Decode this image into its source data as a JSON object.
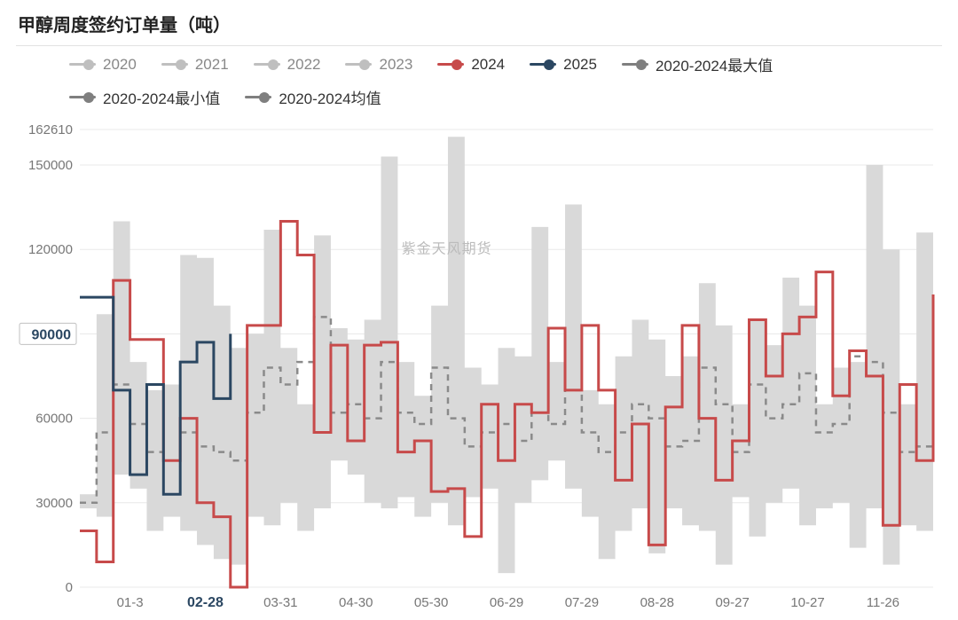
{
  "title": "甲醇周度签约订单量（吨）",
  "watermark": "紫金天风期货",
  "chart": {
    "type": "line-step",
    "background_color": "#ffffff",
    "grid_color": "#e8e8e8",
    "ylim": [
      0,
      162610
    ],
    "yticks": [
      0,
      30000,
      60000,
      90000,
      120000,
      150000,
      162610
    ],
    "ylabel_highlight": 90000,
    "xticks": [
      "01-3",
      "02-28",
      "03-31",
      "04-30",
      "05-30",
      "06-29",
      "07-29",
      "08-28",
      "09-27",
      "10-27",
      "11-26"
    ],
    "xtick_highlight": "02-28",
    "axis_fontsize": 15,
    "highlight_fontsize": 16,
    "title_fontsize": 20
  },
  "legend": {
    "items": [
      {
        "key": "y2020",
        "label": "2020",
        "style": "line-dot",
        "color": "#bfbfbf",
        "dim": true
      },
      {
        "key": "y2021",
        "label": "2021",
        "style": "line-dot",
        "color": "#bfbfbf",
        "dim": true
      },
      {
        "key": "y2022",
        "label": "2022",
        "style": "line-dot",
        "color": "#bfbfbf",
        "dim": true
      },
      {
        "key": "y2023",
        "label": "2023",
        "style": "line-dot",
        "color": "#bfbfbf",
        "dim": true
      },
      {
        "key": "y2024",
        "label": "2024",
        "style": "line-dot",
        "color": "#c74a4a",
        "dim": false
      },
      {
        "key": "y2025",
        "label": "2025",
        "style": "line-dot",
        "color": "#2b4762",
        "dim": false
      },
      {
        "key": "max",
        "label": "2020-2024最大值",
        "style": "line-dot",
        "color": "#7f7f7f",
        "dim": false
      },
      {
        "key": "min",
        "label": "2020-2024最小值",
        "style": "line-dot",
        "color": "#7f7f7f",
        "dim": false
      },
      {
        "key": "avg",
        "label": "2020-2024均值",
        "style": "line-dot",
        "color": "#7f7f7f",
        "dim": false
      }
    ]
  },
  "series": {
    "background_band": {
      "color": "#d9d9d9",
      "opacity": 1.0,
      "upper": [
        33000,
        97000,
        130000,
        80000,
        70000,
        72000,
        118000,
        117000,
        100000,
        85000,
        90000,
        127000,
        85000,
        65000,
        125000,
        92000,
        88000,
        95000,
        153000,
        80000,
        68000,
        100000,
        160000,
        78000,
        72000,
        85000,
        82000,
        128000,
        80000,
        136000,
        70000,
        65000,
        82000,
        95000,
        88000,
        75000,
        82000,
        108000,
        93000,
        65000,
        95000,
        86000,
        110000,
        100000,
        65000,
        78000,
        80000,
        150000,
        120000,
        65000,
        126000,
        48000
      ],
      "lower": [
        28000,
        25000,
        40000,
        35000,
        20000,
        25000,
        20000,
        15000,
        10000,
        8000,
        25000,
        22000,
        30000,
        20000,
        28000,
        45000,
        40000,
        30000,
        28000,
        32000,
        25000,
        30000,
        22000,
        32000,
        35000,
        5000,
        30000,
        38000,
        45000,
        35000,
        25000,
        10000,
        20000,
        28000,
        12000,
        28000,
        22000,
        20000,
        8000,
        32000,
        18000,
        30000,
        35000,
        22000,
        28000,
        30000,
        14000,
        28000,
        8000,
        22000,
        20000,
        20000
      ]
    },
    "avg": {
      "color": "#8a8a8a",
      "width": 2.5,
      "dash": "7,6",
      "values": [
        30000,
        55000,
        72000,
        58000,
        48000,
        45000,
        55000,
        50000,
        48000,
        45000,
        62000,
        78000,
        72000,
        80000,
        96000,
        62000,
        65000,
        60000,
        80000,
        62000,
        58000,
        78000,
        60000,
        50000,
        55000,
        58000,
        52000,
        62000,
        58000,
        70000,
        55000,
        48000,
        55000,
        65000,
        60000,
        50000,
        52000,
        78000,
        65000,
        48000,
        72000,
        60000,
        65000,
        76000,
        55000,
        58000,
        82000,
        80000,
        62000,
        48000,
        50000,
        46000
      ]
    },
    "y2024": {
      "color": "#c74a4a",
      "width": 3,
      "dash": null,
      "values": [
        20000,
        9000,
        109000,
        88000,
        88000,
        45000,
        60000,
        30000,
        25000,
        0,
        93000,
        93000,
        130000,
        118000,
        55000,
        86000,
        52000,
        86000,
        87000,
        48000,
        52000,
        34000,
        35000,
        18000,
        65000,
        45000,
        65000,
        62000,
        92000,
        70000,
        93000,
        70000,
        38000,
        58000,
        15000,
        64000,
        93000,
        60000,
        38000,
        52000,
        95000,
        75000,
        90000,
        96000,
        112000,
        68000,
        84000,
        75000,
        22000,
        72000,
        45000,
        104000
      ]
    },
    "y2025": {
      "color": "#2b4762",
      "width": 3,
      "dash": null,
      "values": [
        103000,
        103000,
        70000,
        40000,
        72000,
        33000,
        80000,
        87000,
        67000,
        90000
      ]
    }
  }
}
